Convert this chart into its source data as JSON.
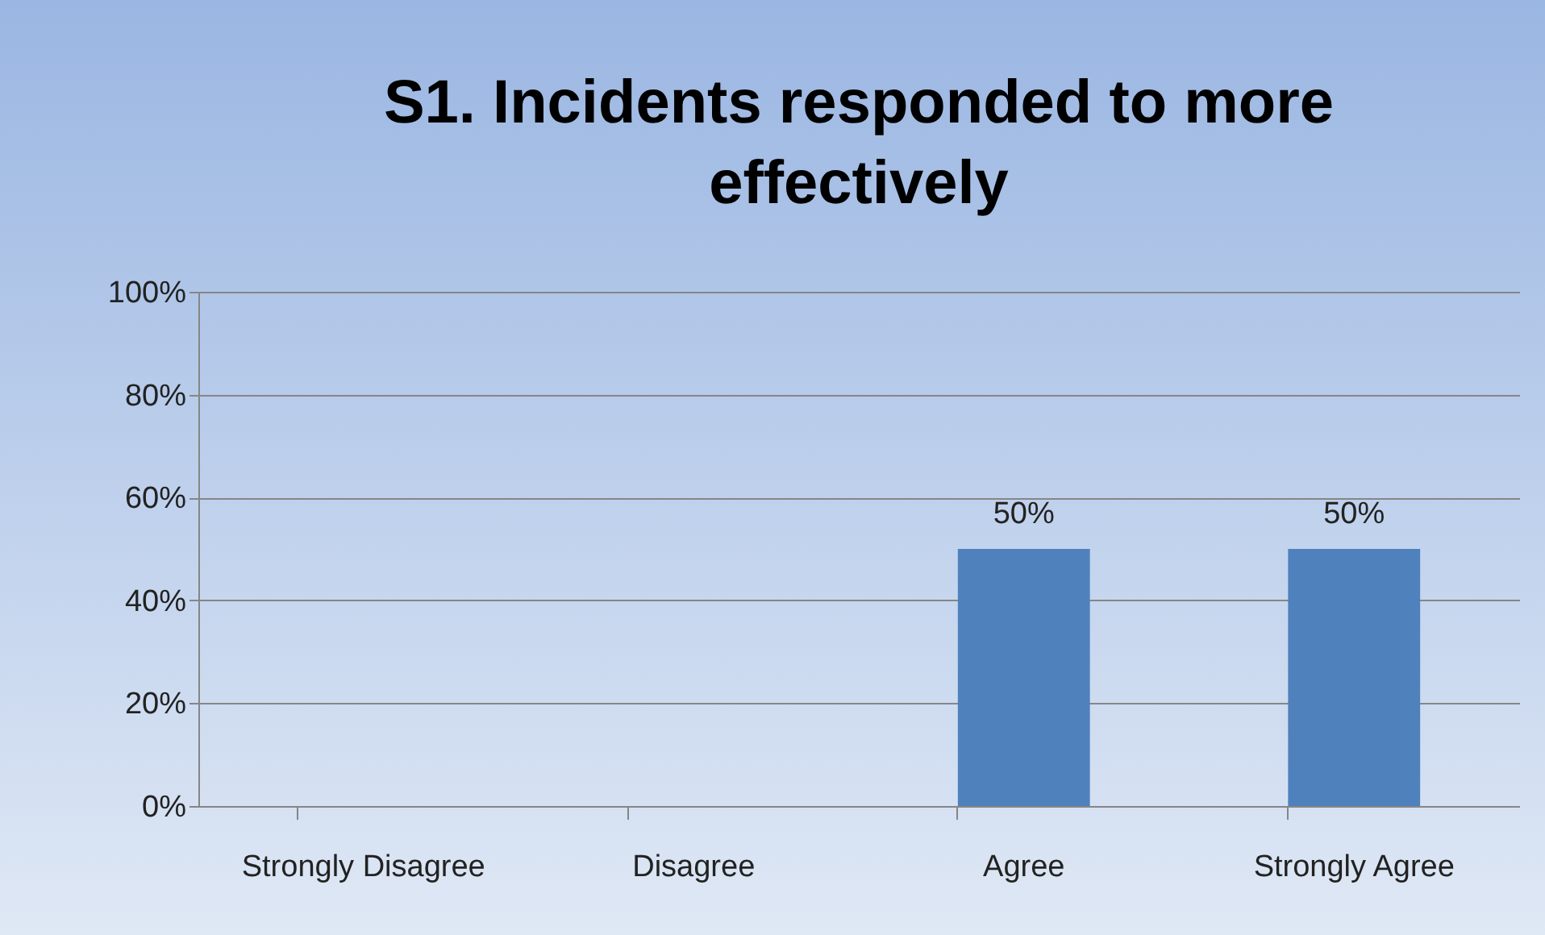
{
  "chart_data": {
    "type": "bar",
    "title": "S1. Incidents responded to more effectively",
    "categories": [
      "Strongly Disagree",
      "Disagree",
      "Agree",
      "Strongly Agree"
    ],
    "values": [
      0,
      0,
      50,
      50
    ],
    "color": "#4f81bd",
    "value_labels": [
      null,
      null,
      "50%",
      "50%"
    ],
    "ylim": [
      0,
      100
    ],
    "yticks": [
      {
        "value": 0,
        "label": "0%"
      },
      {
        "value": 20,
        "label": "20%"
      },
      {
        "value": 40,
        "label": "40%"
      },
      {
        "value": 60,
        "label": "60%"
      },
      {
        "value": 80,
        "label": "80%"
      },
      {
        "value": 100,
        "label": "100%"
      }
    ],
    "grid": "y"
  }
}
